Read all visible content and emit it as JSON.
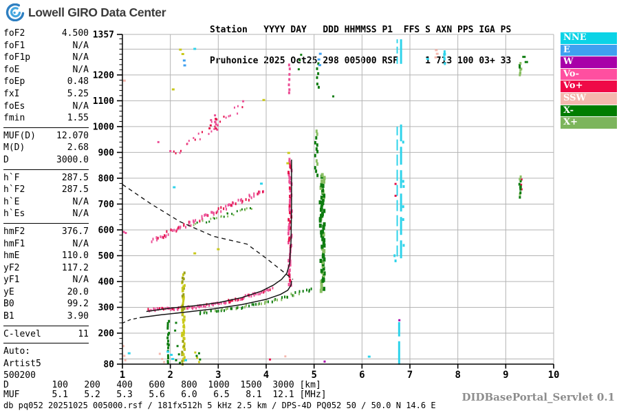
{
  "header": {
    "brand": "Lowell GIRO Data Center",
    "station_line1": "Station   YYYY DAY   DDD HHMMSS P1  FFS S AXN PPS IGA PS",
    "station_line2": "Pruhonice 2025 Oct25 298 005000 RSF     1 713 100 03+ 33"
  },
  "params": [
    {
      "label": "foF2",
      "value": "4.500"
    },
    {
      "label": "foF1",
      "value": "N/A"
    },
    {
      "label": "foF1p",
      "value": "N/A"
    },
    {
      "label": "foE",
      "value": "N/A"
    },
    {
      "label": "foEp",
      "value": "0.48"
    },
    {
      "label": "fxI",
      "value": "5.25"
    },
    {
      "label": "foEs",
      "value": "N/A"
    },
    {
      "label": "fmin",
      "value": "1.55"
    },
    {
      "divider": true
    },
    {
      "label": "MUF(D)",
      "value": "12.070"
    },
    {
      "label": "M(D)",
      "value": "2.68"
    },
    {
      "label": "D",
      "value": "3000.0"
    },
    {
      "divider": true
    },
    {
      "label": "h`F",
      "value": "287.5"
    },
    {
      "label": "h`F2",
      "value": "287.5"
    },
    {
      "label": "h`E",
      "value": "N/A"
    },
    {
      "label": "h`Es",
      "value": "N/A"
    },
    {
      "divider": true
    },
    {
      "label": "hmF2",
      "value": "376.7"
    },
    {
      "label": "hmF1",
      "value": "N/A"
    },
    {
      "label": "hmE",
      "value": "110.0"
    },
    {
      "label": "yF2",
      "value": "117.2"
    },
    {
      "label": "yF1",
      "value": "N/A"
    },
    {
      "label": "yE",
      "value": "20.0"
    },
    {
      "label": "B0",
      "value": "99.2"
    },
    {
      "label": "B1",
      "value": "3.90"
    },
    {
      "divider": true
    },
    {
      "label": "C-level",
      "value": "11"
    },
    {
      "divider": true
    },
    {
      "label": "Auto:",
      "value": ""
    },
    {
      "label": "Artist5",
      "value": ""
    },
    {
      "label": "500200",
      "value": ""
    }
  ],
  "legend": [
    {
      "label": "NNE",
      "color": "#0bd3e6"
    },
    {
      "label": "E",
      "color": "#3fa0f0"
    },
    {
      "label": "W",
      "color": "#a800a8"
    },
    {
      "label": "Vo-",
      "color": "#ff4fa0"
    },
    {
      "label": "Vo+",
      "color": "#ef0a47"
    },
    {
      "label": "SSW",
      "color": "#f5b8ae"
    },
    {
      "label": "X-",
      "color": "#007d00"
    },
    {
      "label": "X+",
      "color": "#7cb55c"
    }
  ],
  "footer": {
    "d_row": "D        100   200   400   600   800  1000  1500  3000 [km]",
    "muf_row": "MUF      5.1   5.2   5.3   5.6   6.0   6.5   8.1  12.1 [MHz]",
    "status": "db pq052 20251025 005000.rsf / 181fx512h 5 kHz 2.5 km / DPS-4D PQ052 50 / 50.0 N 14.6 E",
    "servlet": "DIDBasePortal_Servlet 0.1"
  },
  "chart_data": {
    "type": "scatter",
    "title": "Pruhonice ionogram 2025 Oct25 298 005000",
    "xlabel": "[MHz]",
    "ylabel": "[km]",
    "xlim": [
      1,
      10
    ],
    "ylim": [
      80,
      1357
    ],
    "grid": true,
    "legend_position": "right",
    "x_ticks": [
      1,
      2,
      3,
      4,
      5,
      6,
      7,
      8,
      9,
      10
    ],
    "y_tick_labels": [
      1357,
      1200,
      1100,
      1000,
      900,
      800,
      700,
      600,
      500,
      400,
      300,
      200,
      80
    ],
    "key_values": {
      "foF2_MHz": 4.5,
      "fxI_MHz": 5.25,
      "fmin_MHz": 1.55,
      "hF_km": 287.5,
      "hmF2_km": 376.7,
      "MUF_3000": 12.07
    },
    "features": [
      {
        "name": "second-hop-f-trace-pink-upper",
        "kind": "scatter",
        "colors": [
          "#ec4f96",
          "#e5124a",
          "#ec4f96"
        ],
        "n": 26,
        "from": [
          2.08,
          885
        ],
        "to": [
          3.5,
          1085
        ],
        "jf": 0.07,
        "jh": 16,
        "sz": [
          2,
          3
        ]
      },
      {
        "name": "second-hop-clump-pink",
        "kind": "vcol",
        "colors": [
          "#ec4f96",
          "#e5124a"
        ],
        "f": 2.9,
        "jf": 0.09,
        "h0": 985,
        "h1": 1040,
        "n": 12,
        "sz": [
          3,
          3
        ]
      },
      {
        "name": "oblique-f-trace-pink",
        "kind": "scatter",
        "colors": [
          "#ec4f96",
          "#ec4f96",
          "#e5124a"
        ],
        "n": 80,
        "from": [
          1.62,
          560
        ],
        "to": [
          3.95,
          752
        ],
        "jf": 0.05,
        "jh": 8,
        "sz": [
          2,
          4
        ]
      },
      {
        "name": "oblique-f-trace-green",
        "kind": "scatter",
        "colors": [
          "#0e7c10",
          "#8abf63"
        ],
        "n": 26,
        "from": [
          2.52,
          622
        ],
        "to": [
          3.72,
          688
        ],
        "jf": 0.06,
        "jh": 7,
        "sz": [
          2,
          3
        ]
      },
      {
        "name": "f-trace-baseline-pink",
        "kind": "scatter",
        "colors": [
          "#ec4f96",
          "#ec4f96",
          "#e5124a"
        ],
        "n": 90,
        "from": [
          1.55,
          290
        ],
        "to": [
          4.12,
          372
        ],
        "jf": 0.02,
        "jh": 5,
        "bend": -22,
        "sz": [
          2,
          4
        ]
      },
      {
        "name": "f-trace-baseline-green",
        "kind": "scatter",
        "colors": [
          "#0e7c10",
          "#0e7c10",
          "#8abf63"
        ],
        "n": 55,
        "from": [
          2.6,
          278
        ],
        "to": [
          4.95,
          370
        ],
        "jf": 0.04,
        "jh": 5,
        "bend": -14,
        "sz": [
          2,
          4
        ]
      },
      {
        "name": "f-trace-asymptote-pink",
        "kind": "vcol",
        "colors": [
          "#ec4f96",
          "#e5124a",
          "#ec4f96",
          "#ec4f96"
        ],
        "f": 4.5,
        "jf": 0.035,
        "h0": 382,
        "h1": 872,
        "n": 60,
        "sz": [
          3,
          5
        ]
      },
      {
        "name": "f-trace-asymptote-pink-upper",
        "kind": "vcol",
        "colors": [
          "#ec4f96"
        ],
        "f": 4.49,
        "jf": 0.02,
        "h0": 1128,
        "h1": 1240,
        "n": 7,
        "sz": [
          3,
          4
        ]
      },
      {
        "name": "x-trace-asymptote-green",
        "kind": "vcol",
        "colors": [
          "#0e7c10",
          "#0e7c10",
          "#8abf63"
        ],
        "f": 5.17,
        "jf": 0.045,
        "h0": 368,
        "h1": 812,
        "n": 65,
        "sz": [
          4,
          6
        ]
      },
      {
        "name": "x-trace-upper-green",
        "kind": "vcol",
        "colors": [
          "#0e7c10",
          "#8abf63"
        ],
        "f": 5.05,
        "jf": 0.03,
        "h0": 815,
        "h1": 985,
        "n": 13,
        "sz": [
          3,
          5
        ]
      },
      {
        "name": "x-trace-top-green",
        "kind": "vcol",
        "colors": [
          "#0e7c10"
        ],
        "f": 5.08,
        "jf": 0.02,
        "h0": 1150,
        "h1": 1242,
        "n": 6,
        "sz": [
          3,
          4
        ]
      },
      {
        "name": "green-top-dots",
        "kind": "dots",
        "color": "#0e7c10",
        "pts": [
          [
            4.7,
            1257
          ],
          [
            4.73,
            1278
          ],
          [
            5.4,
            1117
          ],
          [
            4.68,
            1222
          ]
        ],
        "sz": [
          3,
          3
        ]
      },
      {
        "name": "blue-dots",
        "kind": "dots",
        "color": "#3fa0f0",
        "pts": [
          [
            5.12,
            1238
          ],
          [
            5.1,
            1260
          ],
          [
            5.13,
            1282
          ],
          [
            2.29,
            1256
          ],
          [
            2.3,
            1237
          ]
        ],
        "sz": [
          4,
          3
        ]
      },
      {
        "name": "rfi-line-left",
        "kind": "vline",
        "color": "#2fd3ea",
        "f": 6.735,
        "w": 2,
        "h0": 497,
        "h1": 1000,
        "dash": "16,6"
      },
      {
        "name": "rfi-line-right",
        "kind": "vline",
        "color": "#2fd3ea",
        "f": 6.815,
        "w": 3,
        "h0": 490,
        "h1": 1008,
        "dash": "26,8"
      },
      {
        "name": "rfi-top-left",
        "kind": "vline",
        "color": "#2fd3ea",
        "f": 6.735,
        "w": 2,
        "h0": 1243,
        "h1": 1338,
        "dash": "10,5"
      },
      {
        "name": "rfi-top-right",
        "kind": "vline",
        "color": "#2fd3ea",
        "f": 6.815,
        "w": 3,
        "h0": 1243,
        "h1": 1338,
        "dash": "0"
      },
      {
        "name": "rfi-bottom",
        "kind": "vline",
        "color": "#2fd3ea",
        "f": 6.775,
        "w": 3,
        "h0": 78,
        "h1": 243,
        "dash": "34,7"
      },
      {
        "name": "rfi-side-dots",
        "kind": "dots",
        "color": "#2fd3ea",
        "pts": [
          [
            6.86,
            788
          ],
          [
            6.87,
            768
          ],
          [
            6.86,
            690
          ],
          [
            6.86,
            640
          ],
          [
            6.87,
            540
          ],
          [
            6.68,
            500
          ],
          [
            6.7,
            480
          ],
          [
            6.86,
            940
          ]
        ],
        "sz": [
          3,
          4
        ]
      },
      {
        "name": "rfi2-cyan-column",
        "kind": "vcol",
        "colors": [
          "#2fd3ea"
        ],
        "f": 7.73,
        "jf": 0.015,
        "h0": 1248,
        "h1": 1292,
        "n": 6,
        "sz": [
          3,
          4
        ]
      },
      {
        "name": "salmon-top-dots",
        "kind": "dots",
        "color": "#f5b8ae",
        "pts": [
          [
            7.55,
            1296
          ],
          [
            7.57,
            1282
          ],
          [
            7.54,
            1268
          ],
          [
            1.04,
            1178
          ]
        ],
        "sz": [
          4,
          3
        ]
      },
      {
        "name": "cyan-stray-dots",
        "kind": "dots",
        "color": "#2fd3ea",
        "pts": [
          [
            7.37,
            1262
          ],
          [
            2.51,
            1301
          ],
          [
            2.08,
            765
          ],
          [
            3.9,
            779
          ]
        ],
        "sz": [
          4,
          3
        ]
      },
      {
        "name": "yellow-stray-dots",
        "kind": "dots",
        "color": "#c9c91c",
        "pts": [
          [
            2.21,
            1298
          ],
          [
            2.26,
            1281
          ],
          [
            2.06,
            1144
          ],
          [
            2.51,
            509
          ],
          [
            3.0,
            525
          ],
          [
            3.95,
            1103
          ],
          [
            4.47,
            898
          ],
          [
            4.45,
            858
          ]
        ],
        "sz": [
          4,
          3
        ]
      },
      {
        "name": "pink-stray-dots",
        "kind": "dots",
        "color": "#ec4f96",
        "pts": [
          [
            1.03,
            592
          ],
          [
            1.07,
            588
          ],
          [
            1.75,
            940
          ],
          [
            2.0,
            905
          ],
          [
            3.52,
            1098
          ]
        ],
        "sz": [
          3,
          3
        ]
      },
      {
        "name": "purple-dots",
        "kind": "dots",
        "color": "#a800a8",
        "pts": [
          [
            6.78,
            250
          ],
          [
            5.22,
            90
          ]
        ],
        "sz": [
          3,
          3
        ]
      },
      {
        "name": "crimson-dots",
        "kind": "dots",
        "color": "#e5124a",
        "pts": [
          [
            6.7,
            778
          ],
          [
            6.7,
            732
          ],
          [
            4.08,
            98
          ],
          [
            9.33,
            795
          ],
          [
            9.32,
            775
          ],
          [
            9.33,
            757
          ]
        ],
        "sz": [
          3,
          3
        ]
      },
      {
        "name": "es-column-yellow",
        "kind": "vcol",
        "colors": [
          "#c9c91c",
          "#c9c91c",
          "#9aa018"
        ],
        "f": 2.27,
        "jf": 0.03,
        "h0": 84,
        "h1": 430,
        "n": 60,
        "sz": [
          3,
          4
        ]
      },
      {
        "name": "es-column-green",
        "kind": "vcol",
        "colors": [
          "#0e7c10"
        ],
        "f": 1.96,
        "jf": 0.02,
        "h0": 84,
        "h1": 248,
        "n": 16,
        "sz": [
          3,
          4
        ]
      },
      {
        "name": "bottom-green-dots",
        "kind": "dots",
        "color": "#0e7c10",
        "pts": [
          [
            2.15,
            150
          ],
          [
            2.18,
            118
          ],
          [
            2.12,
            95
          ],
          [
            2.2,
            85
          ],
          [
            2.55,
            112
          ],
          [
            2.6,
            122
          ],
          [
            2.62,
            98
          ],
          [
            2.1,
            210
          ],
          [
            2.12,
            240
          ]
        ],
        "sz": [
          3,
          3
        ]
      },
      {
        "name": "bottom-cyan-dots",
        "kind": "dots",
        "color": "#2fd3ea",
        "pts": [
          [
            1.14,
            122
          ],
          [
            2.02,
            116
          ],
          [
            2.05,
            100
          ],
          [
            6.15,
            109
          ],
          [
            2.32,
            95
          ],
          [
            1.95,
            128
          ]
        ],
        "sz": [
          4,
          3
        ]
      },
      {
        "name": "bottom-salmon-dots",
        "kind": "dots",
        "color": "#f5b8ae",
        "pts": [
          [
            1.02,
            150
          ],
          [
            1.04,
            112
          ],
          [
            1.78,
            120
          ],
          [
            1.83,
            100
          ],
          [
            1.87,
            88
          ],
          [
            4.4,
            110
          ],
          [
            1.06,
            95
          ]
        ],
        "sz": [
          3,
          3
        ]
      },
      {
        "name": "bottom-yellow-dots",
        "kind": "dots",
        "color": "#c9c91c",
        "pts": [
          [
            2.52,
            125
          ],
          [
            2.56,
            104
          ],
          [
            2.6,
            88
          ]
        ],
        "sz": [
          3,
          3
        ]
      },
      {
        "name": "right-green-upper",
        "kind": "vcol",
        "colors": [
          "#0e7c10",
          "#8abf63"
        ],
        "f": 9.31,
        "jf": 0.02,
        "h0": 1198,
        "h1": 1245,
        "n": 8,
        "sz": [
          3,
          4
        ]
      },
      {
        "name": "right-green-dashes",
        "kind": "dots",
        "color": "#0e7c10",
        "pts": [
          [
            9.38,
            1270
          ],
          [
            9.43,
            1250
          ]
        ],
        "sz": [
          5,
          3
        ]
      },
      {
        "name": "right-green-lower",
        "kind": "vcol",
        "colors": [
          "#0e7c10",
          "#8abf63"
        ],
        "f": 9.3,
        "jf": 0.015,
        "h0": 725,
        "h1": 808,
        "n": 10,
        "sz": [
          3,
          4
        ]
      },
      {
        "name": "muf-transmission-curve",
        "kind": "curve",
        "color": "#151515",
        "w": 1.4,
        "dash": "6,5",
        "pts": [
          [
            1.0,
            776
          ],
          [
            1.6,
            700
          ],
          [
            2.2,
            632
          ],
          [
            2.9,
            575
          ],
          [
            3.6,
            545
          ],
          [
            4.0,
            490
          ],
          [
            4.3,
            446
          ],
          [
            4.56,
            408
          ]
        ]
      },
      {
        "name": "profile-below-fmin-dashed",
        "kind": "curve",
        "color": "#151515",
        "w": 1.3,
        "dash": "5,4",
        "pts": [
          [
            0.99,
            238
          ],
          [
            1.16,
            252
          ],
          [
            1.36,
            260
          ]
        ]
      },
      {
        "name": "true-height-profile",
        "kind": "curve",
        "color": "#151515",
        "w": 1.5,
        "pts": [
          [
            1.36,
            260
          ],
          [
            1.8,
            271
          ],
          [
            2.3,
            281
          ],
          [
            2.9,
            294
          ],
          [
            3.5,
            311
          ],
          [
            4.0,
            331
          ],
          [
            4.3,
            350
          ],
          [
            4.45,
            366
          ],
          [
            4.52,
            386
          ],
          [
            4.53,
            402
          ]
        ]
      },
      {
        "name": "o-trace-fit-curve",
        "kind": "curve",
        "color": "#151515",
        "w": 1.5,
        "pts": [
          [
            1.5,
            284
          ],
          [
            2.0,
            297
          ],
          [
            2.5,
            306
          ],
          [
            3.0,
            318
          ],
          [
            3.5,
            338
          ],
          [
            3.9,
            363
          ],
          [
            4.15,
            386
          ],
          [
            4.32,
            408
          ],
          [
            4.43,
            432
          ],
          [
            4.49,
            470
          ],
          [
            4.52,
            560
          ],
          [
            4.53,
            700
          ],
          [
            4.53,
            872
          ]
        ]
      }
    ]
  }
}
